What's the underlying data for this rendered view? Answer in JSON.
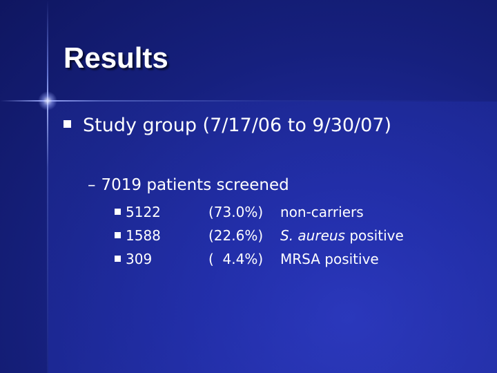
{
  "slide": {
    "title": "Results",
    "bullet": "Study group (7/17/06 to 9/30/07)",
    "sub_bullet": "7019 patients screened",
    "sub_dash": "–",
    "rows": [
      {
        "count": "5122",
        "percent": "(73.0%)",
        "desc_italic": "",
        "desc": "non-carriers"
      },
      {
        "count": "1588",
        "percent": "(22.6%)",
        "desc_italic": "S. aureus",
        "desc": " positive"
      },
      {
        "count": "309",
        "percent": "(  4.4%)",
        "desc_italic": "",
        "desc": "MRSA positive"
      }
    ]
  },
  "colors": {
    "background": "#1a2390",
    "text": "#ffffff"
  }
}
